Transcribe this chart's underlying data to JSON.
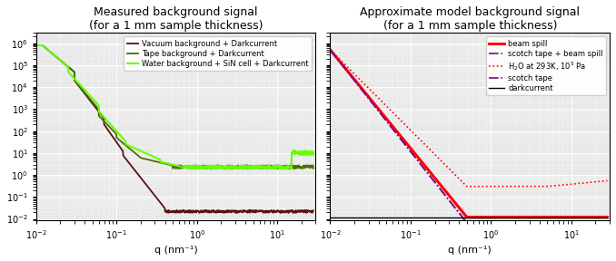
{
  "title_left": "Measured background signal\n(for a 1 mm sample thickness)",
  "title_right": "Approximate model background signal\n(for a 1 mm sample thickness)",
  "xlabel": "q (nm⁻¹)",
  "bg_color": "#e8e8e8",
  "xlim": [
    0.01,
    30
  ],
  "ylim": [
    0.009,
    3000000.0
  ],
  "color_vacuum": "#5c1010",
  "color_tape": "#4a7000",
  "color_water_left": "#66ff00",
  "color_beam": "#ff0000",
  "color_scotch_beam": "#880088",
  "color_water_right": "#ff0000",
  "color_scotch": "#880088",
  "color_dark": "#000000",
  "legend_left": [
    "Vacuum background + Darkcurrent",
    "Tape background + Darkcurrent",
    "Water background + SiN cell + Darkcurrent"
  ],
  "legend_right_0": "beam spill",
  "legend_right_1": "scotch tape + beam spill",
  "legend_right_3": "scotch tape",
  "legend_right_4": "darkcurrent"
}
